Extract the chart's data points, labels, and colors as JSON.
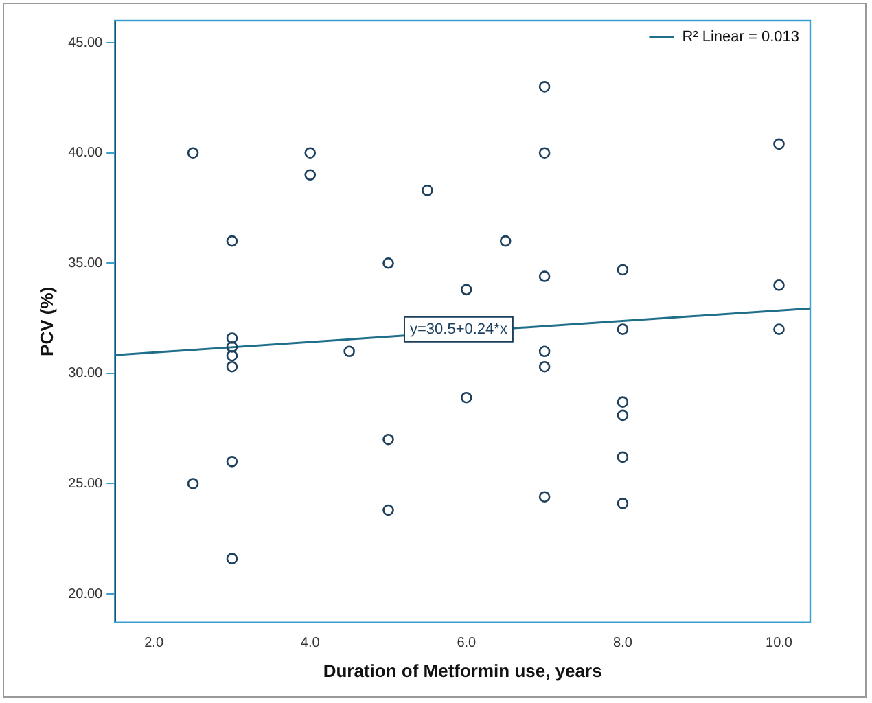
{
  "chart_data": {
    "type": "scatter",
    "xlabel": "Duration of Metformin use, years",
    "ylabel": "PCV (%)",
    "xlim": [
      1.5,
      10.4
    ],
    "ylim": [
      18.7,
      46
    ],
    "xticks": [
      {
        "value": 2,
        "label": "2.0"
      },
      {
        "value": 4,
        "label": "4.0"
      },
      {
        "value": 6,
        "label": "6.0"
      },
      {
        "value": 8,
        "label": "8.0"
      },
      {
        "value": 10,
        "label": "10.0"
      }
    ],
    "yticks": [
      {
        "value": 20,
        "label": "20.00"
      },
      {
        "value": 25,
        "label": "25.00"
      },
      {
        "value": 30,
        "label": "30.00"
      },
      {
        "value": 35,
        "label": "35.00"
      },
      {
        "value": 40,
        "label": "40.00"
      },
      {
        "value": 45,
        "label": "45.00"
      }
    ],
    "grid": false,
    "legend": "top right",
    "marker": "circle",
    "series": [
      {
        "color": "#1b3f5c",
        "x": [
          2.5,
          2.5,
          3,
          3,
          3,
          3,
          3,
          3,
          3,
          4,
          4,
          4.5,
          5,
          5,
          5,
          5.5,
          6,
          6,
          6.5,
          7,
          7,
          7,
          7,
          7,
          7,
          8,
          8,
          8,
          8,
          8,
          8,
          10,
          10,
          10
        ],
        "values": [
          40,
          25,
          36.0,
          31.6,
          31.2,
          30.8,
          30.3,
          26.0,
          21.6,
          40,
          39.0,
          31.0,
          35.0,
          27.0,
          23.8,
          38.3,
          33.8,
          28.9,
          36.0,
          43.0,
          40.0,
          34.4,
          31.0,
          30.3,
          24.4,
          34.7,
          32.0,
          28.7,
          28.1,
          26.2,
          24.1,
          40.4,
          34.0,
          32.0
        ]
      },
      {
        "type": "line",
        "marker": "none",
        "name": "R² Linear = 0.013",
        "color": "#1f6f8b",
        "x": [
          1.5,
          10.4
        ],
        "values": [
          30.83,
          32.95
        ]
      }
    ],
    "annotations": [
      {
        "text": "y=30.5+0.24*x",
        "x": 5.9,
        "y": 32.0
      }
    ]
  }
}
